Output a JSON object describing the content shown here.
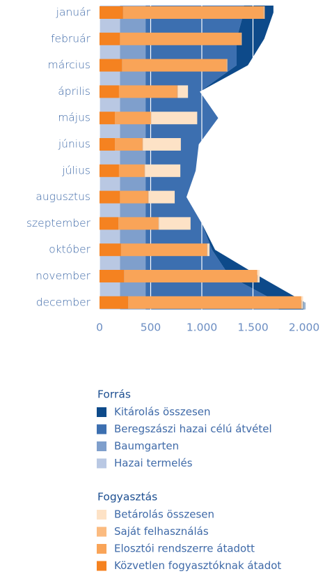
{
  "chart_data": {
    "type": "bar",
    "categories": [
      "január",
      "február",
      "március",
      "április",
      "május",
      "június",
      "július",
      "augusztus",
      "szeptember",
      "október",
      "november",
      "december"
    ],
    "xlim": [
      0,
      2000
    ],
    "xticks": [
      0,
      500,
      {
        "value": 1000,
        "label": "1.000"
      },
      {
        "value": 1500,
        "label": "1.500"
      },
      {
        "value": 2000,
        "label": "2.000"
      }
    ],
    "grid": true,
    "grid_color": "#ffffff",
    "series_groups": [
      {
        "title": "Forrás",
        "type": "area",
        "series": [
          {
            "name": "Kitárolás összesen",
            "color": "#0d4a8a",
            "values": [
              290,
              270,
              110,
              0,
              0,
              0,
              0,
              0,
              0,
              30,
              290,
              260
            ]
          },
          {
            "name": "Beregszászi hazai célú átvétel",
            "color": "#3c6fb0",
            "values": [
              960,
              890,
              890,
              530,
              710,
              520,
              490,
              400,
              550,
              650,
              820,
              1300
            ]
          },
          {
            "name": "Baumgarten",
            "color": "#7f9fcc",
            "values": [
              250,
              250,
              250,
              250,
              250,
              250,
              250,
              250,
              250,
              250,
              250,
              250
            ]
          },
          {
            "name": "Hazai termelés",
            "color": "#b9c8e3",
            "values": [
              200,
              200,
              200,
              200,
              200,
              200,
              200,
              200,
              200,
              200,
              200,
              200
            ]
          }
        ]
      },
      {
        "title": "Fogyasztás",
        "type": "bar",
        "series": [
          {
            "name": "Betárolás összesen",
            "color": "#fde2c6",
            "values": [
              0,
              0,
              0,
              100,
              450,
              370,
              345,
              255,
              310,
              20,
              20,
              15
            ]
          },
          {
            "name": "Saját felhasználás",
            "color": "#fbbb80",
            "values": [
              15,
              10,
              10,
              5,
              5,
              5,
              5,
              5,
              5,
              5,
              5,
              5
            ]
          },
          {
            "name": "Elosztói rendszerre átadott",
            "color": "#f9a458",
            "values": [
              1370,
              1180,
              1020,
              570,
              350,
              270,
              250,
              275,
              390,
              840,
              1300,
              1690
            ]
          },
          {
            "name": "Közvetlen fogyasztóknak átadot",
            "color": "#f58220",
            "values": [
              230,
              200,
              220,
              190,
              150,
              150,
              190,
              200,
              185,
              210,
              240,
              280
            ]
          }
        ]
      }
    ]
  }
}
